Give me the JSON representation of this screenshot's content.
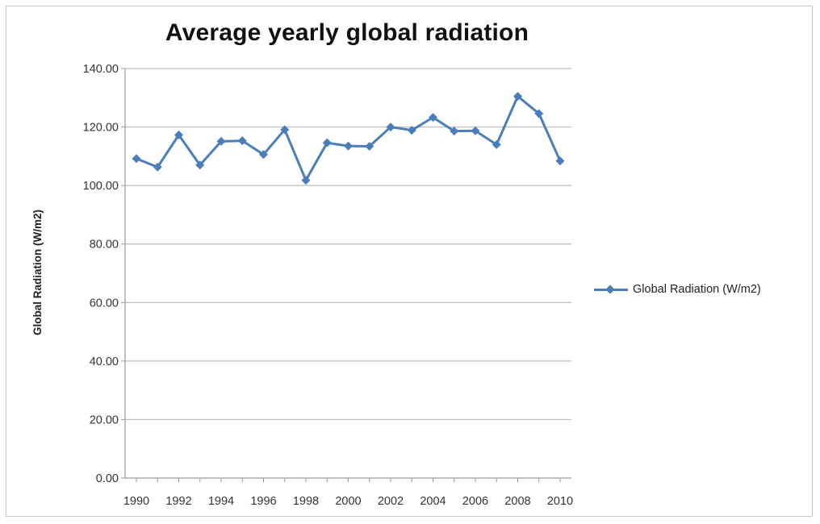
{
  "chart_data": {
    "type": "line",
    "title": "Average yearly global radiation",
    "xlabel": "",
    "ylabel": "Global Radiation (W/m2)",
    "x": [
      1990,
      1991,
      1992,
      1993,
      1994,
      1995,
      1996,
      1997,
      1998,
      1999,
      2000,
      2001,
      2002,
      2003,
      2004,
      2005,
      2006,
      2007,
      2008,
      2009,
      2010
    ],
    "x_tick_labels": [
      "1990",
      "1992",
      "1994",
      "1996",
      "1998",
      "2000",
      "2002",
      "2004",
      "2006",
      "2008",
      "2010"
    ],
    "y_tick_labels": [
      "0.00",
      "20.00",
      "40.00",
      "60.00",
      "80.00",
      "100.00",
      "120.00",
      "140.00"
    ],
    "ylim": [
      0,
      140
    ],
    "grid": "horizontal",
    "legend_position": "right",
    "series": [
      {
        "name": "Global Radiation (W/m2)",
        "color": "#4a7ebb",
        "marker": "diamond",
        "values": [
          109.2,
          106.3,
          117.3,
          107.0,
          115.1,
          115.3,
          110.6,
          119.1,
          101.8,
          114.6,
          113.5,
          113.4,
          120.0,
          118.9,
          123.3,
          118.6,
          118.7,
          114.0,
          130.5,
          124.6,
          108.4
        ]
      }
    ]
  },
  "legend": {
    "label": "Global Radiation (W/m2)"
  }
}
